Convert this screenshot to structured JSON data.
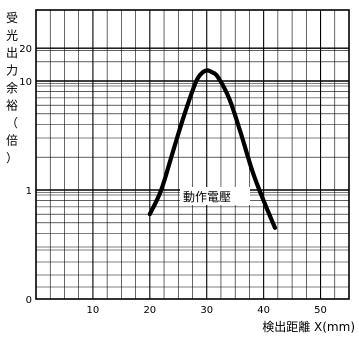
{
  "chart_data": {
    "type": "line",
    "ylabel": "受光出力余裕（倍）",
    "xlabel": "検出距離 X(mm)",
    "y_scale": "log",
    "x_ticks": [
      "10",
      "20",
      "30",
      "40",
      "50"
    ],
    "y_ticks": [
      {
        "value": 20,
        "label": "20"
      },
      {
        "value": 10,
        "label": "10"
      },
      {
        "value": 1,
        "label": "1"
      }
    ],
    "y_bottom_label": "0",
    "xlim": [
      0,
      55
    ],
    "grid": true,
    "annotation": {
      "text": "動作電壓",
      "x": 26.5,
      "y": 0.7
    },
    "series": [
      {
        "x": [
          20,
          22,
          24,
          26,
          28,
          29,
          30,
          31,
          32,
          34,
          36,
          38,
          40,
          42
        ],
        "y": [
          0.6,
          1.0,
          2.2,
          4.8,
          9.5,
          11.6,
          12.5,
          12.0,
          10.8,
          6.8,
          3.3,
          1.5,
          0.8,
          0.45
        ]
      }
    ]
  }
}
